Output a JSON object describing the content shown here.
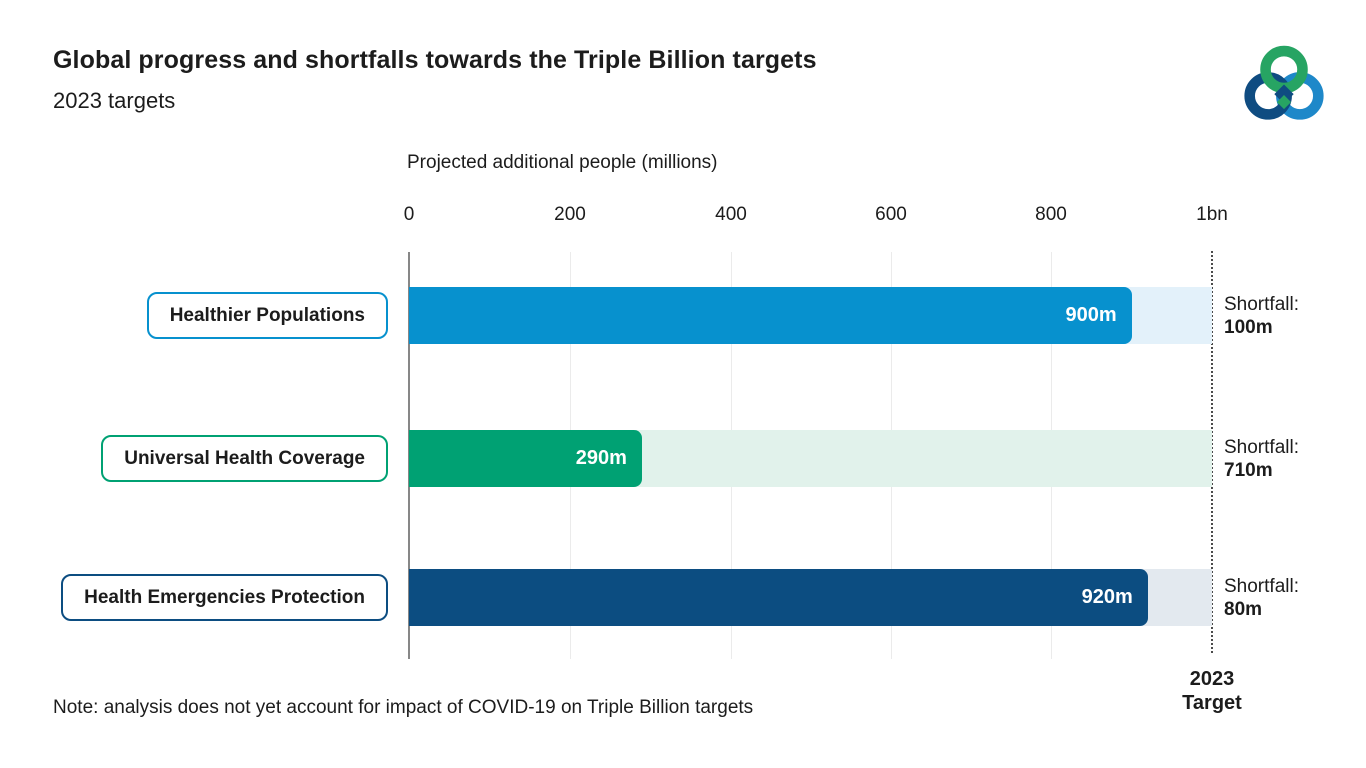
{
  "header": {
    "title": "Global progress and shortfalls towards the Triple Billion targets",
    "subtitle": "2023 targets"
  },
  "axis": {
    "title": "Projected additional people (millions)",
    "tick_labels": [
      "0",
      "200",
      "400",
      "600",
      "800",
      "1bn"
    ]
  },
  "target_label": {
    "line1": "2023",
    "line2": "Target"
  },
  "note": "Note: analysis does not yet account for impact of COVID-19 on Triple Billion targets",
  "rows": [
    {
      "label": "Healthier Populations",
      "value": 900,
      "value_label": "900m",
      "shortfall_title": "Shortfall:",
      "shortfall_value": "100m",
      "bar_color": "#0791CE",
      "track_color": "#E3F1FA"
    },
    {
      "label": "Universal Health Coverage",
      "value": 290,
      "value_label": "290m",
      "shortfall_title": "Shortfall:",
      "shortfall_value": "710m",
      "bar_color": "#00A173",
      "track_color": "#E1F2EB"
    },
    {
      "label": "Health Emergencies Protection",
      "value": 920,
      "value_label": "920m",
      "shortfall_title": "Shortfall:",
      "shortfall_value": "80m",
      "bar_color": "#0C4D81",
      "track_color": "#E3E9EF"
    }
  ],
  "logo_colors": {
    "green": "#27A463",
    "dark_blue": "#0F4C81",
    "light_blue": "#1E88C9"
  },
  "chart_data": {
    "type": "bar",
    "orientation": "horizontal",
    "title": "Global progress and shortfalls towards the Triple Billion targets",
    "subtitle": "2023 targets",
    "categories": [
      "Healthier Populations",
      "Universal Health Coverage",
      "Health Emergencies Protection"
    ],
    "series": [
      {
        "name": "Projected additional people (millions)",
        "values": [
          900,
          290,
          920
        ]
      },
      {
        "name": "Shortfall to 2023 target (millions)",
        "values": [
          100,
          710,
          80
        ]
      }
    ],
    "data_labels": [
      "900m",
      "290m",
      "920m"
    ],
    "annotations": [
      "Shortfall: 100m",
      "Shortfall: 710m",
      "Shortfall: 80m"
    ],
    "xlabel": "Projected additional people (millions)",
    "xlim": [
      0,
      1000
    ],
    "xticks": [
      0,
      200,
      400,
      600,
      800,
      1000
    ],
    "xtick_labels": [
      "0",
      "200",
      "400",
      "600",
      "800",
      "1bn"
    ],
    "target_line": {
      "x": 1000,
      "label": "2023 Target",
      "style": "dotted"
    },
    "grid": "vertical, light gray",
    "legend": "none",
    "note": "Note: analysis does not yet account for impact of COVID-19 on Triple Billion targets"
  }
}
